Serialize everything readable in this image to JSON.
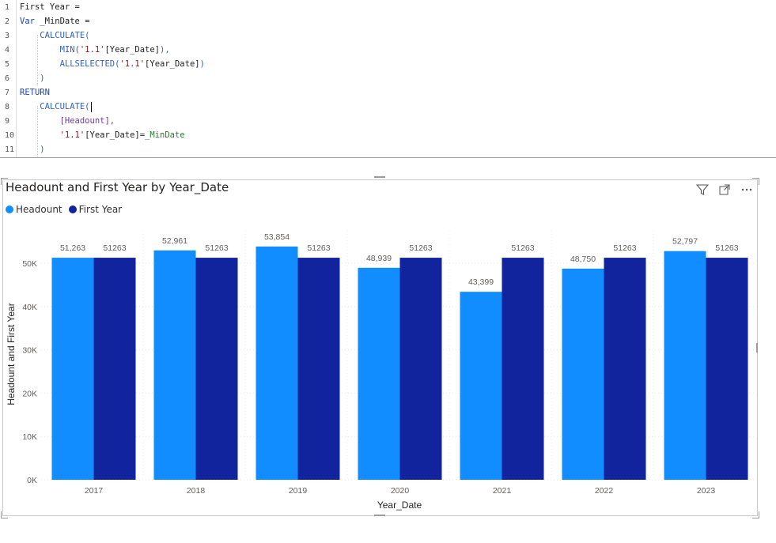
{
  "editor": {
    "lines": [
      {
        "n": "1",
        "segments": [
          {
            "t": "First Year =",
            "c": "plain"
          }
        ]
      },
      {
        "n": "2",
        "segments": [
          {
            "t": "Var ",
            "c": "kw"
          },
          {
            "t": "_MinDate =",
            "c": "plain"
          }
        ]
      },
      {
        "n": "3",
        "segments": [
          {
            "t": "    CALCULATE(",
            "c": "fn"
          }
        ]
      },
      {
        "n": "4",
        "segments": [
          {
            "t": "        MIN(",
            "c": "fn"
          },
          {
            "t": "'1.1'",
            "c": "str"
          },
          {
            "t": "[Year_Date]",
            "c": "plain"
          },
          {
            "t": "),",
            "c": "fn"
          }
        ]
      },
      {
        "n": "5",
        "segments": [
          {
            "t": "        ALLSELECTED(",
            "c": "fn"
          },
          {
            "t": "'1.1'",
            "c": "str"
          },
          {
            "t": "[Year_Date]",
            "c": "plain"
          },
          {
            "t": ")",
            "c": "fn"
          }
        ]
      },
      {
        "n": "6",
        "segments": [
          {
            "t": "    )",
            "c": "fn"
          }
        ]
      },
      {
        "n": "7",
        "segments": [
          {
            "t": "RETURN",
            "c": "kw"
          }
        ]
      },
      {
        "n": "8",
        "segments": [
          {
            "t": "    CALCULATE(",
            "c": "fn"
          }
        ]
      },
      {
        "n": "9",
        "segments": [
          {
            "t": "        [Headount],",
            "c": "ref"
          }
        ]
      },
      {
        "n": "10",
        "segments": [
          {
            "t": "        ",
            "c": "plain"
          },
          {
            "t": "'1.1'",
            "c": "str"
          },
          {
            "t": "[Year_Date]=",
            "c": "plain"
          },
          {
            "t": "_MinDate",
            "c": "grn"
          }
        ]
      },
      {
        "n": "11",
        "segments": [
          {
            "t": "    )",
            "c": "fn"
          }
        ]
      }
    ]
  },
  "visual": {
    "title": "Headount and First Year by Year_Date",
    "icons": [
      "filter-icon",
      "focus-mode-icon",
      "more-options-icon"
    ],
    "legend": [
      {
        "label": "Headount",
        "color": "#118DFF"
      },
      {
        "label": "First Year",
        "color": "#12239E"
      }
    ]
  },
  "chart_data": {
    "type": "bar",
    "title": "Headount and First Year by Year_Date",
    "xlabel": "Year_Date",
    "ylabel": "Headount and First Year",
    "categories": [
      "2017",
      "2018",
      "2019",
      "2020",
      "2021",
      "2022",
      "2023"
    ],
    "ylim": [
      0,
      50000
    ],
    "yticks": [
      "0K",
      "10K",
      "20K",
      "30K",
      "40K",
      "50K"
    ],
    "grid": true,
    "legend_position": "top-left",
    "series": [
      {
        "name": "Headount",
        "color": "#118DFF",
        "values": [
          51263,
          52961,
          53854,
          48939,
          43399,
          48750,
          52797
        ],
        "labels": [
          "51,263",
          "52,961",
          "53,854",
          "48,939",
          "43,399",
          "48,750",
          "52,797"
        ]
      },
      {
        "name": "First Year",
        "color": "#12239E",
        "values": [
          51263,
          51263,
          51263,
          51263,
          51263,
          51263,
          51263
        ],
        "labels": [
          "51263",
          "51263",
          "51263",
          "51263",
          "51263",
          "51263",
          "51263"
        ]
      }
    ]
  }
}
